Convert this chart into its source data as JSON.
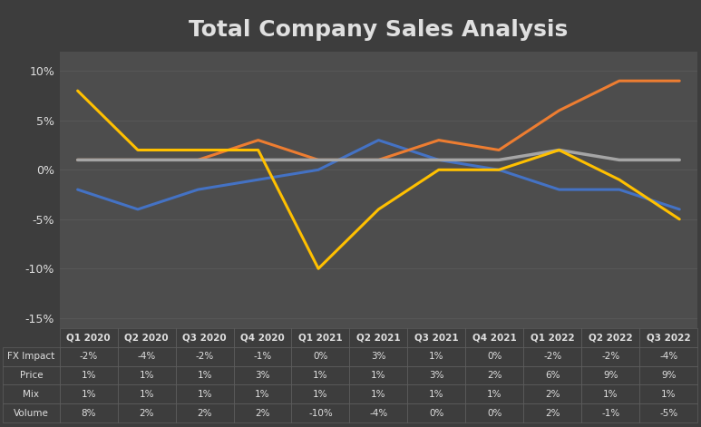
{
  "title": "Total Company Sales Analysis",
  "categories": [
    "Q1 2020",
    "Q2 2020",
    "Q3 2020",
    "Q4 2020",
    "Q1 2021",
    "Q2 2021",
    "Q3 2021",
    "Q4 2021",
    "Q1 2022",
    "Q2 2022",
    "Q3 2022"
  ],
  "series_order": [
    "FX Impact",
    "Price",
    "Mix",
    "Volume"
  ],
  "series": {
    "FX Impact": {
      "values": [
        -2,
        -4,
        -2,
        -1,
        0,
        3,
        1,
        0,
        -2,
        -2,
        -4
      ],
      "color": "#4472C4",
      "linewidth": 2.2
    },
    "Price": {
      "values": [
        1,
        1,
        1,
        3,
        1,
        1,
        3,
        2,
        6,
        9,
        9
      ],
      "color": "#ED7D31",
      "linewidth": 2.2
    },
    "Mix": {
      "values": [
        1,
        1,
        1,
        1,
        1,
        1,
        1,
        1,
        2,
        1,
        1
      ],
      "color": "#A5A5A5",
      "linewidth": 2.5
    },
    "Volume": {
      "values": [
        8,
        2,
        2,
        2,
        -10,
        -4,
        0,
        0,
        2,
        -1,
        -5
      ],
      "color": "#FFC000",
      "linewidth": 2.2
    }
  },
  "ylim": [
    -16,
    12
  ],
  "yticks": [
    -15,
    -10,
    -5,
    0,
    5,
    10
  ],
  "ytick_labels": [
    "-15%",
    "-10%",
    "-5%",
    "0%",
    "5%",
    "10%"
  ],
  "bg_color": "#3d3d3d",
  "plot_bg_color": "#4d4d4d",
  "grid_color": "#5a5a5a",
  "text_color": "#e0e0e0",
  "title_fontsize": 18,
  "legend_fontsize": 9,
  "tick_fontsize": 9,
  "table_fontsize": 7.5,
  "table_header_fontsize": 7.5
}
